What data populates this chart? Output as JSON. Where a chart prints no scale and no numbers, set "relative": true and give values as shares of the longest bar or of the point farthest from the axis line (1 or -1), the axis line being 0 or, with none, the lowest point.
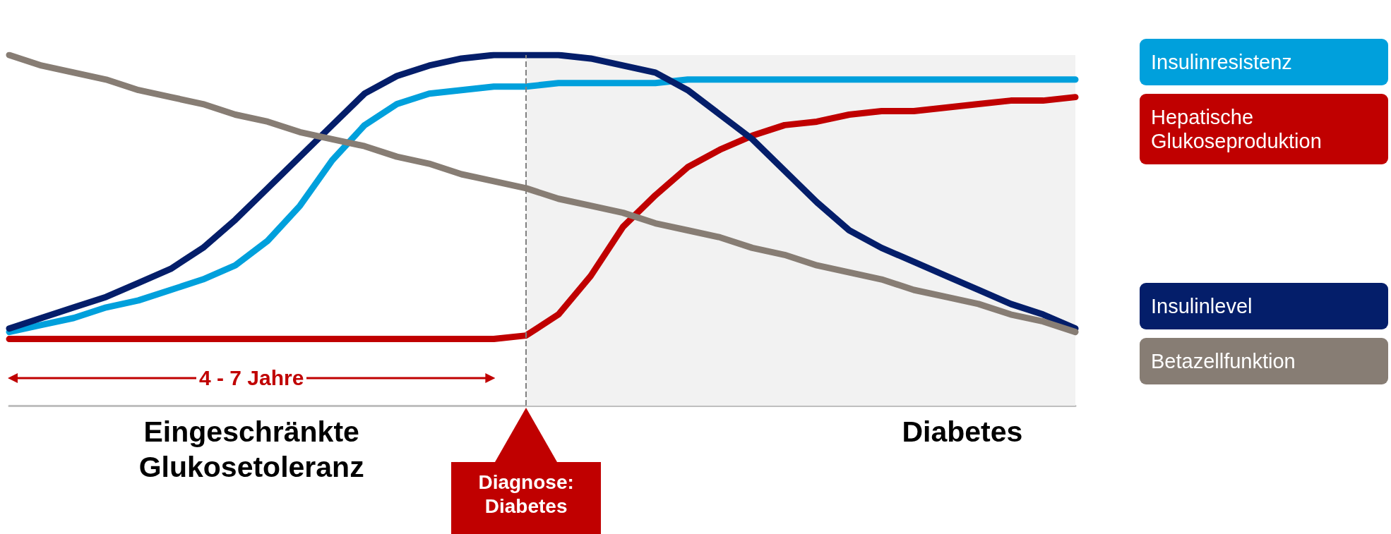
{
  "chart_data": {
    "type": "line",
    "relative": true,
    "marker": "none",
    "line_style": "solid",
    "grid": false,
    "legend": "right",
    "categories": [
      null,
      null,
      null,
      null,
      null,
      null,
      null,
      null,
      null,
      null,
      null,
      null,
      null,
      null,
      null,
      null,
      null,
      null,
      null,
      null,
      null,
      null,
      null,
      null,
      null,
      null,
      null,
      null,
      null,
      null,
      null,
      null,
      null,
      null
    ],
    "series": [
      {
        "name": "Insulinresistenz",
        "color": "#00a0dc",
        "values": [
          0.21,
          0.23,
          0.25,
          0.28,
          0.3,
          0.33,
          0.36,
          0.4,
          0.47,
          0.57,
          0.7,
          0.8,
          0.86,
          0.89,
          0.9,
          0.91,
          0.91,
          0.92,
          0.92,
          0.92,
          0.92,
          0.93,
          0.93,
          0.93,
          0.93,
          0.93,
          0.93,
          0.93,
          0.93,
          0.93,
          0.93,
          0.93,
          0.93,
          0.93
        ]
      },
      {
        "name": "Hepatische Glukoseproduktion",
        "color": "#c00000",
        "values": [
          0.19,
          0.19,
          0.19,
          0.19,
          0.19,
          0.19,
          0.19,
          0.19,
          0.19,
          0.19,
          0.19,
          0.19,
          0.19,
          0.19,
          0.19,
          0.19,
          0.2,
          0.26,
          0.37,
          0.51,
          0.6,
          0.68,
          0.73,
          0.77,
          0.8,
          0.81,
          0.83,
          0.84,
          0.84,
          0.85,
          0.86,
          0.87,
          0.87,
          0.88
        ]
      },
      {
        "name": "Insulinlevel",
        "color": "#041e6a",
        "values": [
          0.22,
          0.25,
          0.28,
          0.31,
          0.35,
          0.39,
          0.45,
          0.53,
          0.62,
          0.71,
          0.8,
          0.89,
          0.94,
          0.97,
          0.99,
          1.0,
          1.0,
          1.0,
          0.99,
          0.97,
          0.95,
          0.9,
          0.83,
          0.76,
          0.67,
          0.58,
          0.5,
          0.45,
          0.41,
          0.37,
          0.33,
          0.29,
          0.26,
          0.22
        ]
      },
      {
        "name": "Betazellfunktion",
        "color": "#877d74",
        "values": [
          1.0,
          0.97,
          0.95,
          0.93,
          0.9,
          0.88,
          0.86,
          0.83,
          0.81,
          0.78,
          0.76,
          0.74,
          0.71,
          0.69,
          0.66,
          0.64,
          0.62,
          0.59,
          0.57,
          0.55,
          0.52,
          0.5,
          0.48,
          0.45,
          0.43,
          0.4,
          0.38,
          0.36,
          0.33,
          0.31,
          0.29,
          0.26,
          0.24,
          0.21
        ]
      }
    ],
    "annotations": [
      "4 - 7 Jahre",
      "Eingeschränkte Glukosetoleranz",
      "Diabetes",
      "Diagnose: Diabetes"
    ]
  }
}
